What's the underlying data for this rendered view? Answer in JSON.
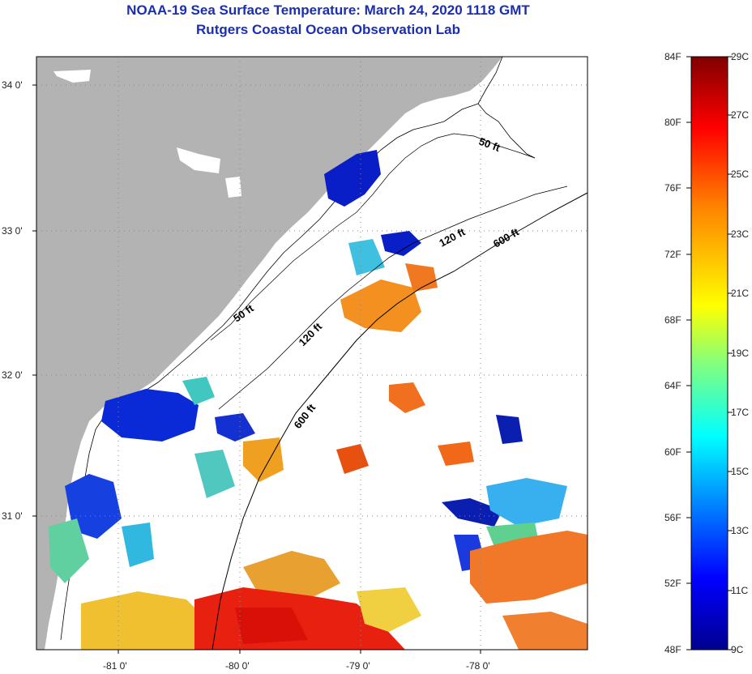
{
  "header": {
    "title": "NOAA-19 Sea Surface Temperature:  March 24, 2020 1118 GMT",
    "subtitle": "Rutgers Coastal Ocean Observation Lab"
  },
  "map": {
    "lat_labels": [
      "34 0'",
      "33 0'",
      "32 0'",
      "31 0'"
    ],
    "lon_labels": [
      "-81 0'",
      "-80 0'",
      "-79 0'",
      "-78 0'"
    ],
    "contour_labels": [
      "50 ft",
      "120 ft",
      "600 ft",
      "50 ft",
      "120 ft",
      "600 ft"
    ],
    "land_color": "#b3b3b3",
    "ocean_nodata_color": "#ffffff"
  },
  "colorbar": {
    "fahrenheit_labels": [
      "84F",
      "80F",
      "76F",
      "72F",
      "68F",
      "64F",
      "60F",
      "56F",
      "52F",
      "48F"
    ],
    "celsius_labels": [
      "29C",
      "27C",
      "25C",
      "23C",
      "21C",
      "19C",
      "17C",
      "15C",
      "13C",
      "11C",
      "9C"
    ],
    "colors": [
      "#00008f",
      "#0000ff",
      "#0080ff",
      "#00ffff",
      "#80ff80",
      "#ffff00",
      "#ff8000",
      "#ff0000",
      "#800000"
    ]
  }
}
